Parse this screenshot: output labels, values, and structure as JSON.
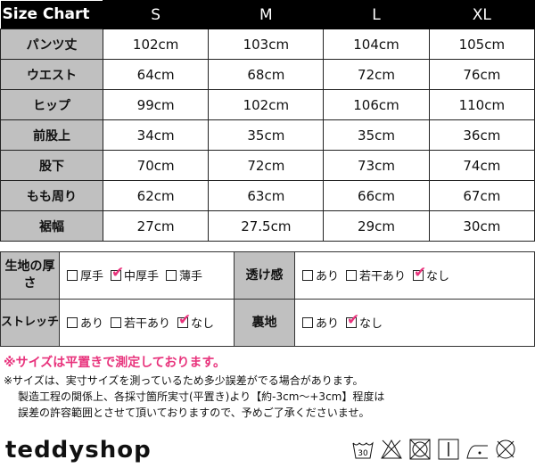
{
  "size_chart": {
    "title": "Size Chart",
    "sizes": [
      "S",
      "M",
      "L",
      "XL"
    ],
    "rows": [
      {
        "label": "パンツ丈",
        "values": [
          "102cm",
          "103cm",
          "104cm",
          "105cm"
        ]
      },
      {
        "label": "ウエスト",
        "values": [
          "64cm",
          "68cm",
          "72cm",
          "76cm"
        ]
      },
      {
        "label": "ヒップ",
        "values": [
          "99cm",
          "102cm",
          "106cm",
          "110cm"
        ]
      },
      {
        "label": "前股上",
        "values": [
          "34cm",
          "35cm",
          "35cm",
          "36cm"
        ]
      },
      {
        "label": "股下",
        "values": [
          "70cm",
          "72cm",
          "73cm",
          "74cm"
        ]
      },
      {
        "label": "もも周り",
        "values": [
          "62cm",
          "63cm",
          "66cm",
          "67cm"
        ]
      },
      {
        "label": "裾幅",
        "values": [
          "27cm",
          "27.5cm",
          "29cm",
          "30cm"
        ]
      }
    ]
  },
  "fabric": {
    "thickness": {
      "label": "生地の厚さ",
      "options": [
        {
          "text": "厚手",
          "checked": false
        },
        {
          "text": "中厚手",
          "checked": true
        },
        {
          "text": "薄手",
          "checked": false
        }
      ]
    },
    "sheer": {
      "label": "透け感",
      "options": [
        {
          "text": "あり",
          "checked": false
        },
        {
          "text": "若干あり",
          "checked": false
        },
        {
          "text": "なし",
          "checked": true
        }
      ]
    },
    "stretch": {
      "label": "ストレッチ",
      "options": [
        {
          "text": "あり",
          "checked": false
        },
        {
          "text": "若干あり",
          "checked": false
        },
        {
          "text": "なし",
          "checked": true
        }
      ]
    },
    "lining": {
      "label": "裏地",
      "options": [
        {
          "text": "あり",
          "checked": false
        },
        {
          "text": "なし",
          "checked": true
        }
      ]
    },
    "check_color": "#e8337c"
  },
  "notes": {
    "highlight": "※サイズは平置きで測定しております。",
    "line1": "※サイズは、実寸サイズを測っているため多少誤差がでる場合があります。",
    "line2": "製造工程の関係上、各採寸箇所実寸(平置き)より【約-3cm～+3cm】程度は",
    "line3": "誤差の許容範囲とさせて頂いておりますので、予めご了承くださいませ。"
  },
  "brand": {
    "logo": "teddyshop"
  },
  "care_icons": [
    {
      "name": "wash-30-icon",
      "text": "30"
    },
    {
      "name": "no-bleach-icon"
    },
    {
      "name": "no-tumble-dry-icon"
    },
    {
      "name": "hang-dry-icon"
    },
    {
      "name": "iron-low-icon"
    },
    {
      "name": "no-dry-clean-icon"
    }
  ]
}
